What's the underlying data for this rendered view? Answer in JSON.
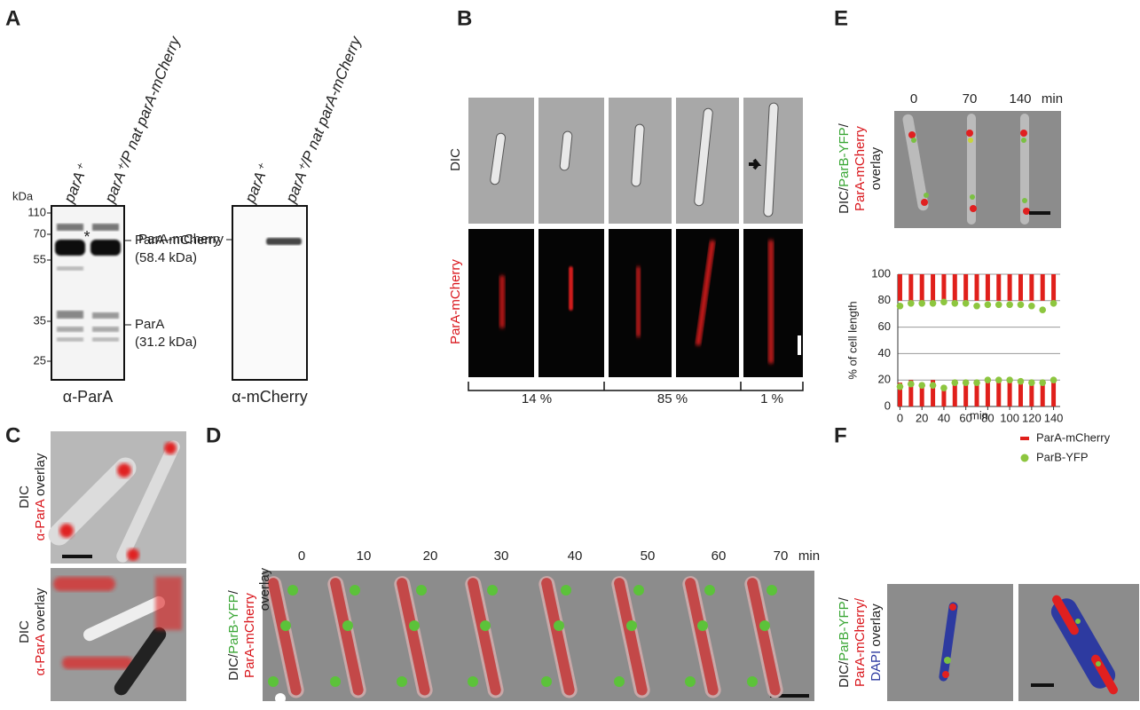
{
  "panels": {
    "A": {
      "letter": "A",
      "kda": "kDa",
      "markers": [
        "110",
        "70",
        "55",
        "35",
        "25"
      ],
      "lanes": [
        "parA⁺",
        "parA⁺/P nat parA-mCherry"
      ],
      "asterisk": "*",
      "band_labels": [
        "ParA-mCherry",
        "(58.4 kDa)",
        "ParA",
        "(31.2 kDa)"
      ],
      "blot1": "α-ParA",
      "lanes2": [
        "parA⁺",
        "parA⁺/P nat parA-mCherry"
      ],
      "band2": "ParA-mCherry",
      "blot2": "α-mCherry"
    },
    "B": {
      "letter": "B",
      "rows": [
        "DIC",
        "ParA-mCherry"
      ],
      "fractions": [
        "14 %",
        "85 %",
        "1 %"
      ]
    },
    "C": {
      "letter": "C",
      "label": [
        "DIC",
        "α-ParA",
        " overlay"
      ]
    },
    "D": {
      "letter": "D",
      "times": [
        "0",
        "10",
        "20",
        "30",
        "40",
        "50",
        "60",
        "70"
      ],
      "unit": "min",
      "label": [
        "DIC/",
        "ParB-YFP",
        "/",
        "ParA-mCherry",
        "overlay"
      ]
    },
    "E": {
      "letter": "E",
      "times": [
        "0",
        "70",
        "140"
      ],
      "unit": "min",
      "label": [
        "DIC/",
        "ParB-YFP",
        "/",
        "ParA-mCherry",
        "overlay"
      ]
    },
    "F": {
      "letter": "F",
      "label": [
        "DIC/",
        "ParB-YFP",
        "/",
        "ParA-mCherry/",
        "DAPI",
        " overlay"
      ]
    }
  },
  "chart_data": {
    "type": "bar",
    "ylabel": "% of cell length",
    "xlabel": "min",
    "x": [
      0,
      10,
      20,
      30,
      40,
      50,
      60,
      70,
      80,
      90,
      100,
      110,
      120,
      130,
      140
    ],
    "xlim": [
      -2,
      146
    ],
    "ylim": [
      0,
      100
    ],
    "xticks": [
      0,
      20,
      40,
      60,
      80,
      100,
      120,
      140
    ],
    "yticks": [
      0,
      20,
      40,
      60,
      80,
      100
    ],
    "grid": true,
    "legend": "bottom-right",
    "series": [
      {
        "name": "ParA-mCherry",
        "color": "#e0201b",
        "lower_bar_top": [
          18,
          20,
          18,
          20,
          16,
          20,
          20,
          20,
          20,
          20,
          20,
          20,
          20,
          20,
          20
        ],
        "upper_bar_bottom": [
          80,
          80,
          80,
          80,
          80,
          80,
          80,
          80,
          80,
          80,
          80,
          80,
          80,
          80,
          80
        ]
      },
      {
        "name": "ParB-YFP",
        "color": "#8dc63f",
        "lower": [
          15,
          17,
          16,
          16,
          14,
          18,
          18,
          18,
          20,
          20,
          20,
          19,
          18,
          18,
          20
        ],
        "upper": [
          76,
          78,
          78,
          78,
          79,
          78,
          78,
          76,
          77,
          77,
          77,
          77,
          76,
          73,
          78
        ]
      }
    ]
  }
}
